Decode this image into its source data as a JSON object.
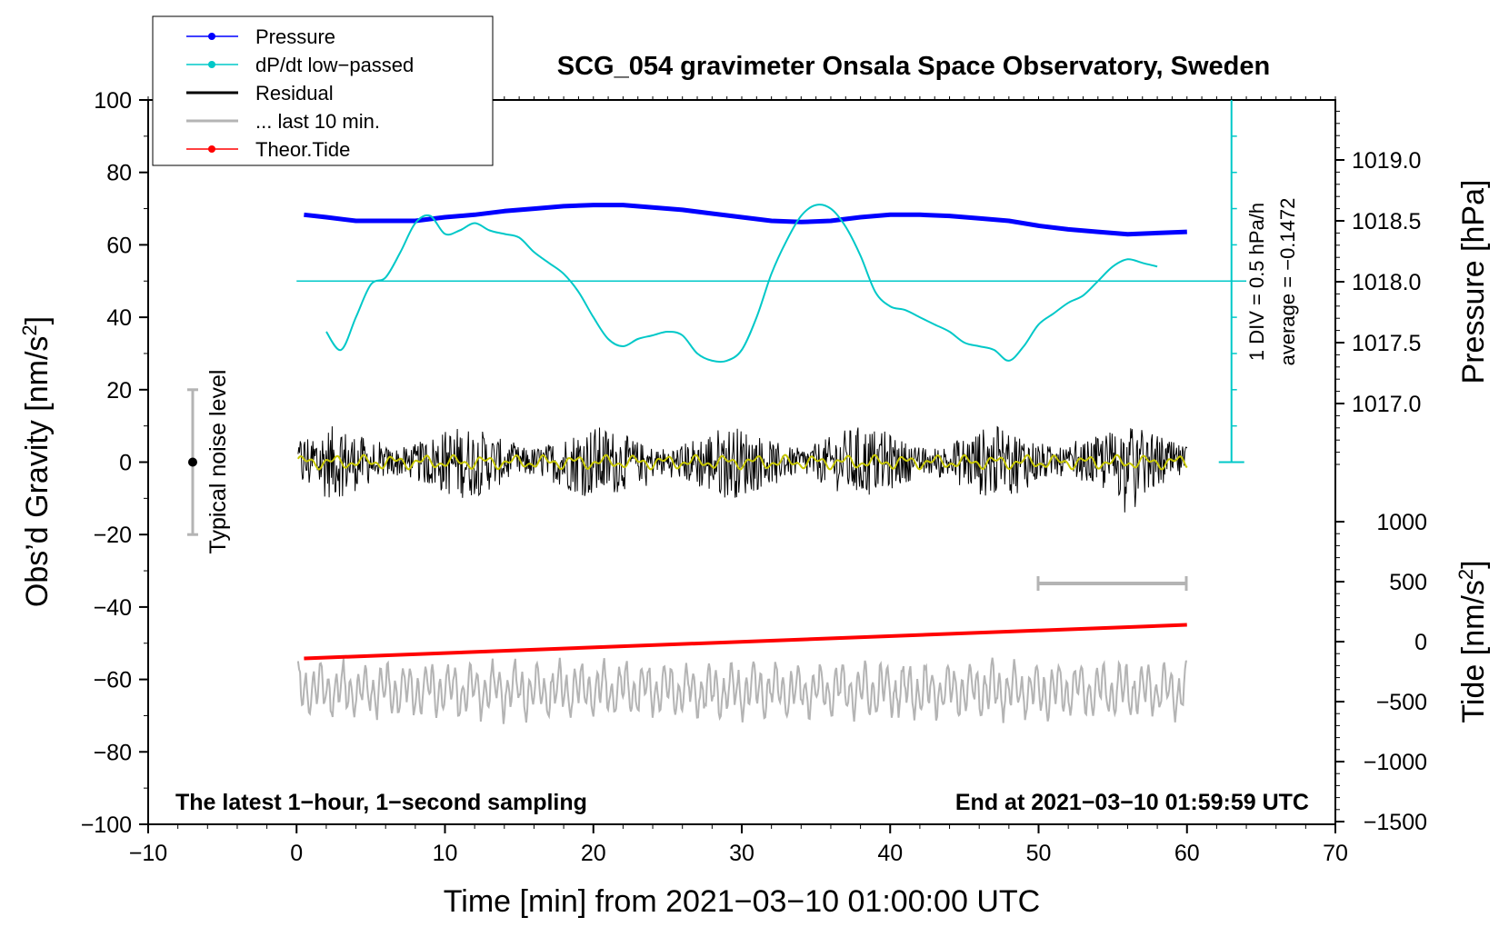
{
  "chart_data": {
    "type": "line",
    "title": "SCG_054 gravimeter Onsala Space Observatory, Sweden",
    "xlabel": "Time [min] from 2021−03−10 01:00:00 UTC",
    "ylabel_left": "Obs’d Gravity [nm/s",
    "ylabel_left_sup": "2",
    "ylabel_left_end": "]",
    "ylabel_right_pressure": "Pressure [hPa]",
    "ylabel_right_tide": "Tide [nm/s",
    "ylabel_right_tide_sup": "2",
    "ylabel_right_tide_end": "]",
    "xlim": [
      -10,
      70
    ],
    "ylim": [
      -100,
      100
    ],
    "x_ticks": [
      "−10",
      "0",
      "10",
      "20",
      "30",
      "40",
      "50",
      "60",
      "70"
    ],
    "y_ticks": [
      "100",
      "80",
      "60",
      "40",
      "20",
      "0",
      "−20",
      "−40",
      "−60",
      "−80",
      "−100"
    ],
    "pressure_ticks": [
      "1019.0",
      "1018.5",
      "1018.0",
      "1017.5",
      "1017.0"
    ],
    "tide_ticks": [
      "1000",
      "500",
      "0",
      "−500",
      "−1000",
      "−1500"
    ],
    "legend": [
      {
        "label": "Pressure",
        "color": "#0000ff",
        "marker": true
      },
      {
        "label": "dP/dt low−passed",
        "color": "#00c8c8",
        "marker": true
      },
      {
        "label": "Residual",
        "color": "#000000",
        "marker": false
      },
      {
        "label": "... last 10 min.",
        "color": "#b4b4b4",
        "marker": false
      },
      {
        "label": "Theor.Tide",
        "color": "#ff0000",
        "marker": true
      }
    ],
    "annotations": {
      "noise_label": "Typical noise level",
      "div_label": "1 DIV = 0.5 hPa/h",
      "average_label": "average = −0.1472",
      "bottom_left": "The latest 1−hour, 1−second sampling",
      "bottom_right": "End at 2021−03−10 01:59:59 UTC"
    },
    "noise_bar": {
      "x": -7,
      "y": 0,
      "ymin": -20,
      "ymax": 20
    },
    "series": [
      {
        "name": "Pressure",
        "unit": "hPa",
        "x": [
          0.5,
          2,
          4,
          6,
          8,
          10,
          12,
          14,
          16,
          18,
          20,
          22,
          24,
          26,
          28,
          30,
          32,
          34,
          36,
          38,
          40,
          42,
          44,
          46,
          48,
          50,
          52,
          54,
          56,
          58,
          60
        ],
        "values": [
          1018.55,
          1018.53,
          1018.5,
          1018.5,
          1018.5,
          1018.53,
          1018.55,
          1018.58,
          1018.6,
          1018.62,
          1018.63,
          1018.63,
          1018.61,
          1018.59,
          1018.56,
          1018.53,
          1018.5,
          1018.49,
          1018.5,
          1018.53,
          1018.55,
          1018.55,
          1018.54,
          1018.52,
          1018.5,
          1018.46,
          1018.43,
          1018.41,
          1018.39,
          1018.4,
          1018.41
        ]
      },
      {
        "name": "dP/dt low-passed",
        "x": [
          2,
          3,
          4,
          5,
          6,
          7,
          8,
          9,
          10,
          11,
          12,
          13,
          14,
          15,
          16,
          17,
          18,
          19,
          20,
          21,
          22,
          23,
          24,
          25,
          26,
          27,
          28,
          29,
          30,
          31,
          32,
          33,
          34,
          35,
          36,
          37,
          38,
          39,
          40,
          41,
          42,
          43,
          44,
          45,
          46,
          47,
          48,
          49,
          50,
          51,
          52,
          53,
          54,
          55,
          56,
          57,
          58
        ],
        "values": [
          36,
          31,
          40,
          49,
          51,
          58,
          66,
          68,
          63,
          64,
          66,
          64,
          63,
          62,
          58,
          55,
          52,
          47,
          40,
          34,
          32,
          34,
          35,
          36,
          35,
          30,
          28,
          28,
          31,
          40,
          52,
          61,
          68,
          71,
          70,
          65,
          57,
          47,
          43,
          42,
          40,
          38,
          36,
          33,
          32,
          31,
          28,
          32,
          38,
          41,
          44,
          46,
          50,
          54,
          56,
          55,
          54
        ]
      },
      {
        "name": "Theor.Tide",
        "unit": "nm/s2",
        "x": [
          0.5,
          60
        ],
        "values": [
          -140,
          140
        ]
      }
    ]
  }
}
